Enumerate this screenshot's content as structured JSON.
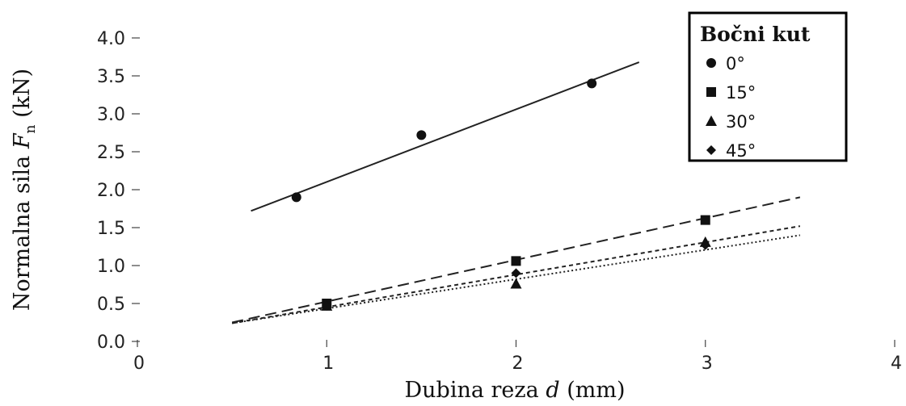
{
  "chart_data": {
    "type": "scatter",
    "xlabel": "Dubina reza",
    "xlabel_var": "d",
    "xlabel_unit": "(mm)",
    "ylabel": "Normalna sila",
    "ylabel_var": "F",
    "ylabel_sub": "n",
    "ylabel_unit": "(kN)",
    "xlim": [
      0,
      4
    ],
    "ylim": [
      0,
      4
    ],
    "x_ticks": [
      "0",
      "1",
      "2",
      "3",
      "4"
    ],
    "y_ticks": [
      "0.0",
      "0.5",
      "1.0",
      "1.5",
      "2.0",
      "2.5",
      "3.0",
      "3.5",
      "4.0"
    ],
    "grid": false,
    "legend": {
      "title": "Bočni kut",
      "position": "top-right"
    },
    "series": [
      {
        "name": "0°",
        "marker": "circle",
        "line_style": "solid",
        "points": [
          [
            0.84,
            1.9
          ],
          [
            1.5,
            2.72
          ],
          [
            2.4,
            3.4
          ]
        ],
        "fit": [
          [
            0.6,
            1.72
          ],
          [
            2.65,
            3.68
          ]
        ]
      },
      {
        "name": "15°",
        "marker": "square",
        "line_style": "long-dash",
        "points": [
          [
            1.0,
            0.5
          ],
          [
            2.0,
            1.06
          ],
          [
            3.0,
            1.6
          ]
        ],
        "fit": [
          [
            0.5,
            0.25
          ],
          [
            3.5,
            1.9
          ]
        ]
      },
      {
        "name": "30°",
        "marker": "triangle",
        "line_style": "short-dash",
        "points": [
          [
            1.0,
            0.47
          ],
          [
            2.0,
            0.76
          ],
          [
            3.0,
            1.31
          ]
        ],
        "fit": [
          [
            0.5,
            0.24
          ],
          [
            3.5,
            1.52
          ]
        ]
      },
      {
        "name": "45°",
        "marker": "diamond",
        "line_style": "dotted",
        "points": [
          [
            1.0,
            0.47
          ],
          [
            2.0,
            0.9
          ],
          [
            3.0,
            1.27
          ]
        ],
        "fit": [
          [
            0.5,
            0.24
          ],
          [
            3.5,
            1.4
          ]
        ]
      }
    ]
  }
}
